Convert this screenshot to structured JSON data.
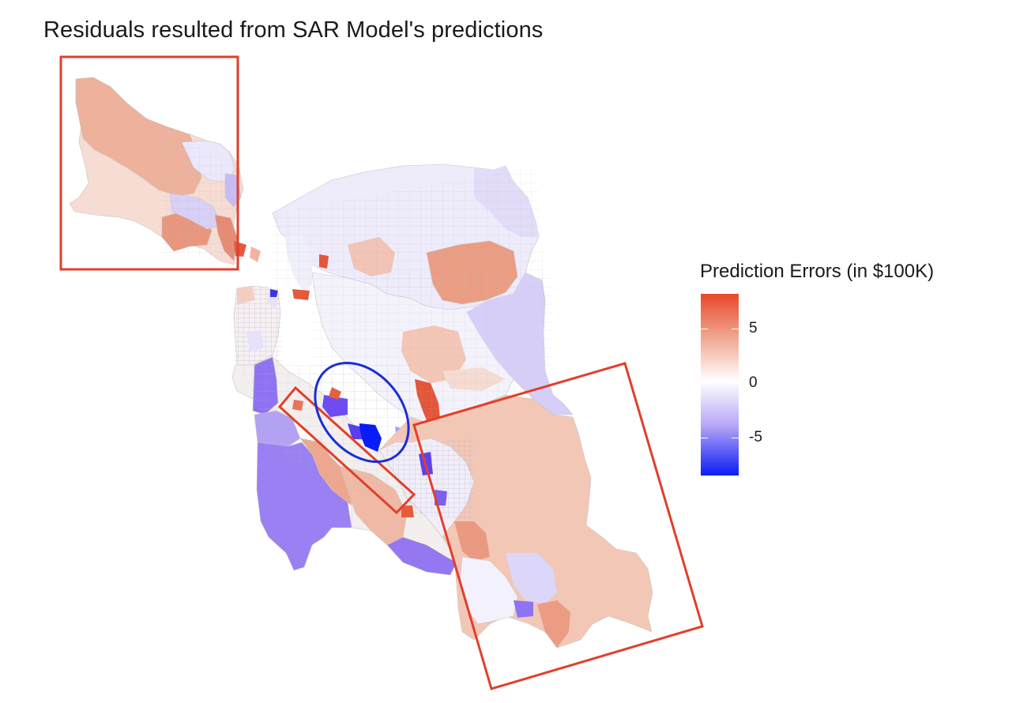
{
  "title": "Residuals resulted from SAR Model's predictions",
  "legend": {
    "title": "Prediction Errors (in $100K)",
    "ticks": [
      {
        "label": "5",
        "value": 5
      },
      {
        "label": "0",
        "value": 0
      },
      {
        "label": "-5",
        "value": -5
      }
    ],
    "range": [
      -8.5,
      8.2
    ],
    "colors": {
      "high": "#e8472b",
      "mid": "#ffffff",
      "low": "#0a1cf5"
    }
  },
  "annotations": {
    "box_color": "#e0402a",
    "ellipse_color": "#1a2fd6"
  }
}
